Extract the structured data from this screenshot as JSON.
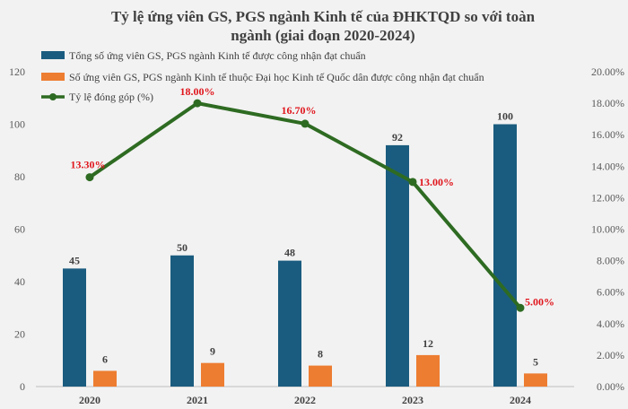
{
  "chart_data": {
    "type": "bar",
    "title_lines": [
      "Tỷ lệ ứng viên GS, PGS ngành Kinh tế của ĐHKTQD so với toàn",
      "ngành (giai đoạn 2020-2024)"
    ],
    "categories": [
      "2020",
      "2021",
      "2022",
      "2023",
      "2024"
    ],
    "series": [
      {
        "name": "Tổng số ứng viên GS, PGS ngành Kinh tế được công nhận đạt chuẩn",
        "kind": "bar",
        "axis": "left",
        "color": "#1a5c7f",
        "values": [
          45,
          50,
          48,
          92,
          100
        ],
        "labels": [
          "45",
          "50",
          "48",
          "92",
          "100"
        ]
      },
      {
        "name": "Số ứng viên GS, PGS ngành Kinh tế thuộc Đại học Kinh tế Quốc dân được công nhận đạt chuẩn",
        "kind": "bar",
        "axis": "left",
        "color": "#ed7d31",
        "values": [
          6,
          9,
          8,
          12,
          5
        ],
        "labels": [
          "6",
          "9",
          "8",
          "12",
          "5"
        ]
      },
      {
        "name": "Tỷ lệ đóng góp (%)",
        "kind": "line",
        "axis": "right",
        "color": "#2e6b22",
        "values": [
          13.3,
          18.0,
          16.7,
          13.0,
          5.0
        ],
        "labels": [
          "13.30%",
          "18.00%",
          "16.70%",
          "13.00%",
          "5.00%"
        ]
      }
    ],
    "y_left": {
      "min": 0,
      "max": 120,
      "ticks": [
        "0",
        "20",
        "40",
        "60",
        "80",
        "100",
        "120"
      ]
    },
    "y_right": {
      "min": 0,
      "max": 20,
      "ticks": [
        "0.00%",
        "2.00%",
        "4.00%",
        "6.00%",
        "8.00%",
        "10.00%",
        "12.00%",
        "14.00%",
        "16.00%",
        "18.00%",
        "20.00%"
      ]
    },
    "grid": false,
    "legend_position": "top-left"
  }
}
